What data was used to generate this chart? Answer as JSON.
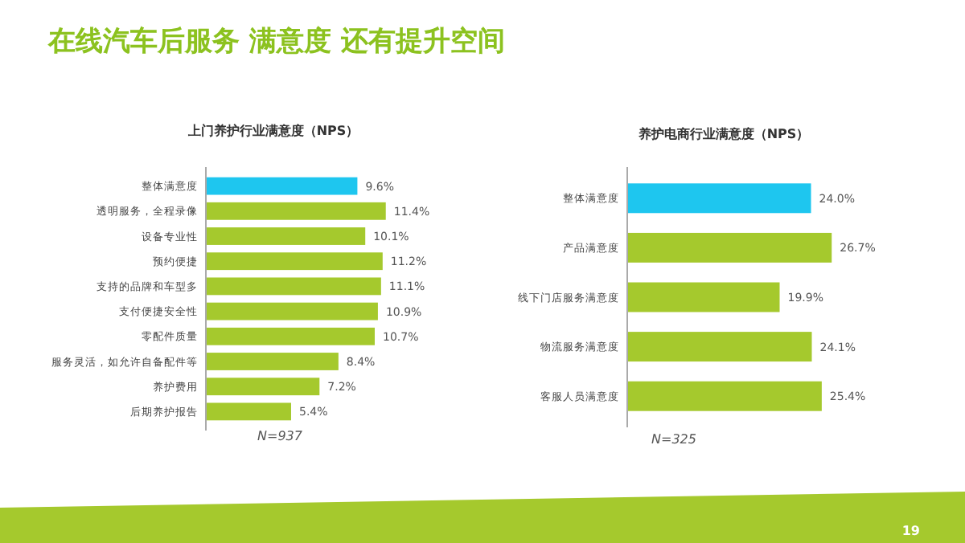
{
  "chart_data": [
    {
      "type": "bar",
      "orientation": "horizontal",
      "title": "上门养护行业满意度（NPS）",
      "categories": [
        "整体满意度",
        "透明服务，全程录像",
        "设备专业性",
        "预约便捷",
        "支持的品牌和车型多",
        "支付便捷安全性",
        "零配件质量",
        "服务灵活，如允许自备配件等",
        "养护费用",
        "后期养护报告"
      ],
      "values": [
        9.6,
        11.4,
        10.1,
        11.2,
        11.1,
        10.9,
        10.7,
        8.4,
        7.2,
        5.4
      ],
      "colors": [
        "#1ec6ef",
        "#a5c92d",
        "#a5c92d",
        "#a5c92d",
        "#a5c92d",
        "#a5c92d",
        "#a5c92d",
        "#a5c92d",
        "#a5c92d",
        "#a5c92d"
      ],
      "value_labels": [
        "9.6%",
        "11.4%",
        "10.1%",
        "11.2%",
        "11.1%",
        "10.9%",
        "10.7%",
        "8.4%",
        "7.2%",
        "5.4%"
      ],
      "tick_labels": "y",
      "annotations": [
        "在线汽车后服务 满意度 还有提升空间",
        "N=937"
      ]
    },
    {
      "type": "bar",
      "orientation": "horizontal",
      "title": "养护电商行业满意度（NPS）",
      "categories": [
        "整体满意度",
        "产品满意度",
        "线下门店服务满意度",
        "物流服务满意度",
        "客服人员满意度"
      ],
      "values": [
        24.0,
        26.7,
        19.9,
        24.1,
        25.4
      ],
      "colors": [
        "#1ec6ef",
        "#a5c92d",
        "#a5c92d",
        "#a5c92d",
        "#a5c92d"
      ],
      "value_labels": [
        "24.0%",
        "26.7%",
        "19.9%",
        "24.1%",
        "25.4%"
      ],
      "tick_labels": "y",
      "annotations": [
        "N=325",
        "19"
      ]
    }
  ]
}
